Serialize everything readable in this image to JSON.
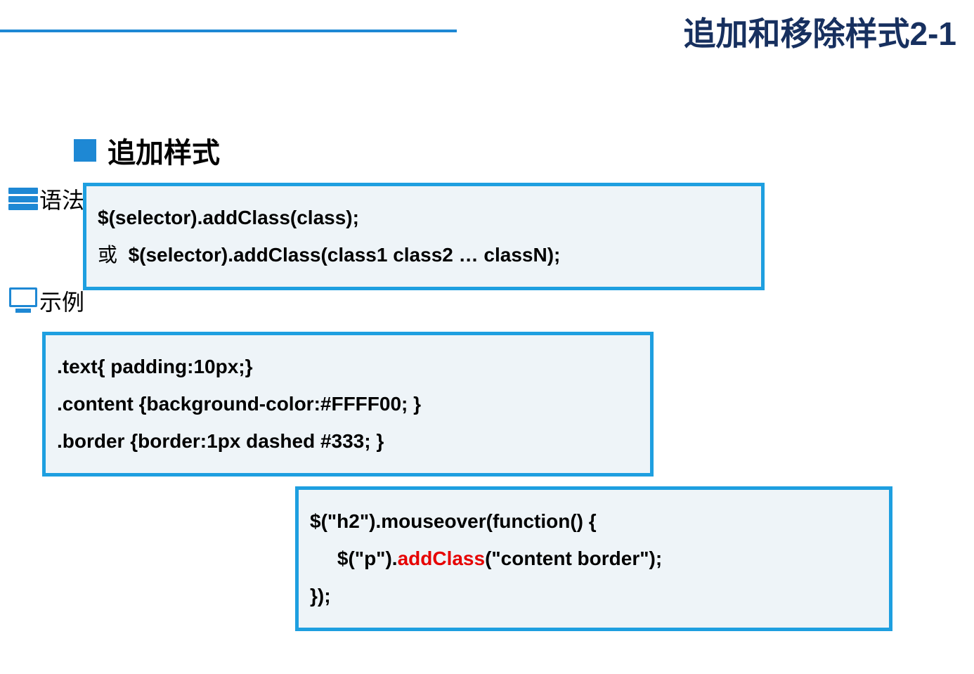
{
  "colors": {
    "accent": "#1e88d4",
    "border": "#1e9fe0",
    "title": "#17305f",
    "box_bg": "#eef4f8",
    "highlight": "#e60000"
  },
  "page": {
    "title": "追加和移除样式2-1"
  },
  "section": {
    "title": "追加样式"
  },
  "labels": {
    "syntax": "语法",
    "example": "示例"
  },
  "syntax_box": {
    "line1": "$(selector).addClass(class);",
    "or": "或",
    "line2": "  $(selector).addClass(class1 class2 … classN);"
  },
  "css_box": {
    "line1": ".text{ padding:10px;}",
    "line2": ".content {background-color:#FFFF00; }",
    "line3": ".border {border:1px dashed #333; }"
  },
  "js_box": {
    "line1": "$(\"h2\").mouseover(function() {",
    "line2_prefix": "     $(\"p\").",
    "line2_highlight": "addClass",
    "line2_suffix": "(\"content border\");",
    "line3": "});"
  }
}
